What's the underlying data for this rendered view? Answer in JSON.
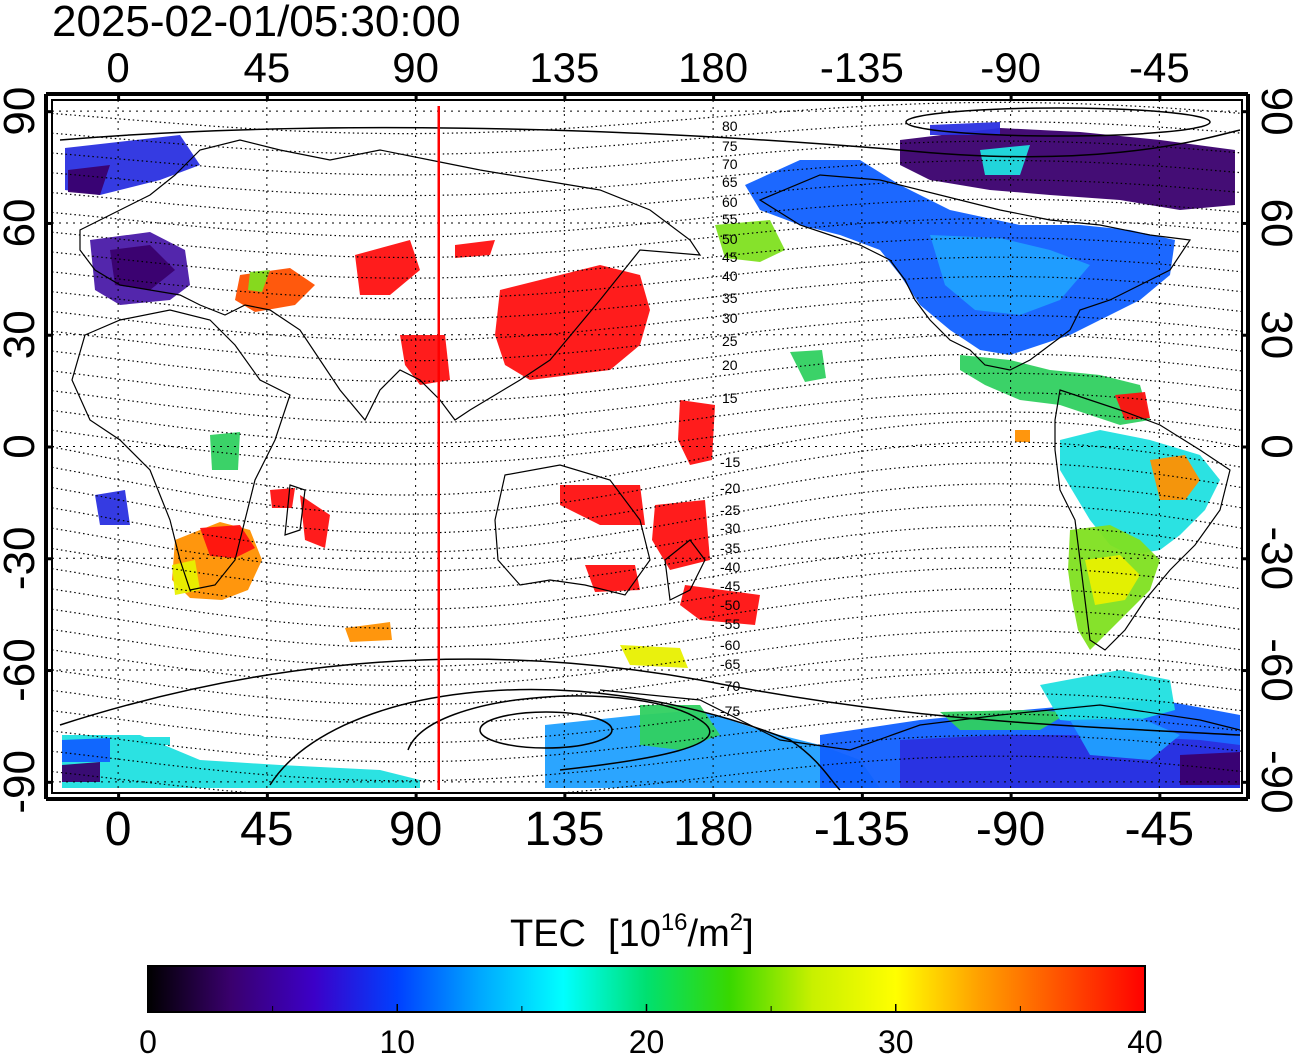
{
  "timestamp": "2025-02-01/05:30:00",
  "map": {
    "lon_labels_top": [
      "0",
      "45",
      "90",
      "135",
      "180",
      "-135",
      "-90",
      "-45"
    ],
    "lon_labels_bottom": [
      "0",
      "45",
      "90",
      "135",
      "180",
      "-135",
      "-90",
      "-45"
    ],
    "lat_labels_left": [
      "90",
      "60",
      "30",
      "0",
      "-30",
      "-60",
      "-90"
    ],
    "lat_labels_right": [
      "90",
      "60",
      "30",
      "0",
      "-30",
      "-60",
      "-90"
    ],
    "lon_ticks": [
      0,
      45,
      90,
      135,
      180,
      225,
      270,
      315
    ],
    "lat_ticks": [
      90,
      60,
      30,
      0,
      -30,
      -60,
      -90
    ],
    "lon_range": [
      -20,
      340
    ],
    "lat_range": [
      -93,
      93
    ],
    "grid": true,
    "meridian_line_lon": 97,
    "meridian_line_color": "#ff0000",
    "magnetic_lat_labels_north": [
      "80",
      "75",
      "70",
      "65",
      "60",
      "55",
      "50",
      "45",
      "40",
      "35",
      "30",
      "25",
      "20",
      "15"
    ],
    "magnetic_lat_labels_south": [
      "-15",
      "-20",
      "-25",
      "-30",
      "-35",
      "-40",
      "-45",
      "-50",
      "-55",
      "-60",
      "-65",
      "-70",
      "-75"
    ]
  },
  "colorbar": {
    "title": "TEC",
    "unit_prefix": "[10",
    "unit_exp": "16",
    "unit_mid": "/m",
    "unit_exp2": "2",
    "unit_suffix": "]",
    "tick_labels": [
      "0",
      "10",
      "20",
      "30",
      "40"
    ],
    "range": [
      0,
      40
    ],
    "colors": [
      "#000000",
      "#3a006e",
      "#3c00c8",
      "#0040ff",
      "#00a8ff",
      "#00ffff",
      "#00e070",
      "#38d800",
      "#c8f000",
      "#ffff00",
      "#ffa000",
      "#ff5000",
      "#ff0000"
    ]
  }
}
